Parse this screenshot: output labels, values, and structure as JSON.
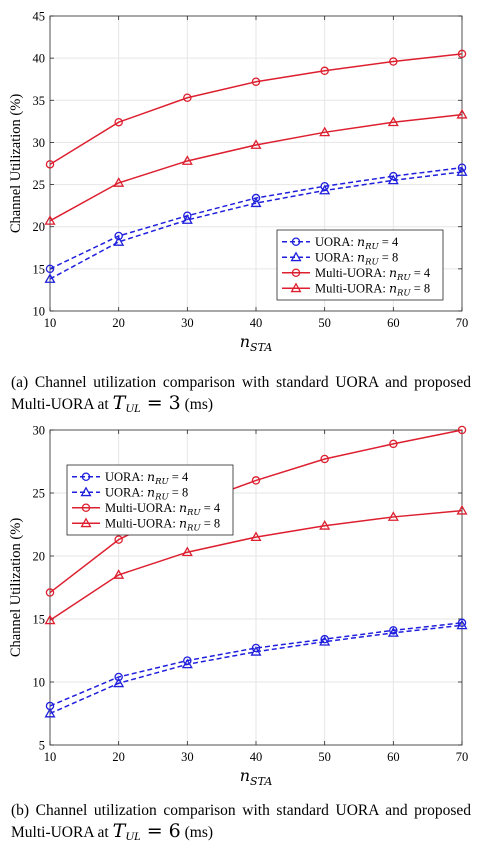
{
  "chart_data": [
    {
      "type": "line",
      "x": [
        10,
        20,
        30,
        40,
        50,
        60,
        70
      ],
      "xlabel": "n_STA",
      "ylabel": "Channel Utilization (%)",
      "xlim": [
        10,
        70
      ],
      "ylim": [
        10,
        45
      ],
      "xticks": [
        10,
        20,
        30,
        40,
        50,
        60,
        70
      ],
      "yticks": [
        10,
        15,
        20,
        25,
        30,
        35,
        40,
        45
      ],
      "grid": true,
      "legend_position": "lower-right",
      "series": [
        {
          "name": "UORA: n_RU = 4",
          "label_prefix": "UORA: ",
          "label_var": "n",
          "label_sub": "RU",
          "label_suffix": " = 4",
          "color": "#1f1fdd",
          "dash": true,
          "marker": "circle",
          "values": [
            15.0,
            18.9,
            21.3,
            23.4,
            24.8,
            26.0,
            27.0
          ]
        },
        {
          "name": "UORA: n_RU = 8",
          "label_prefix": "UORA: ",
          "label_var": "n",
          "label_sub": "RU",
          "label_suffix": " = 8",
          "color": "#1f1fdd",
          "dash": true,
          "marker": "triangle",
          "values": [
            13.8,
            18.2,
            20.8,
            22.8,
            24.3,
            25.5,
            26.5
          ]
        },
        {
          "name": "Multi-UORA: n_RU = 4",
          "label_prefix": "Multi-UORA: ",
          "label_var": "n",
          "label_sub": "RU",
          "label_suffix": " = 4",
          "color": "#dd1f2f",
          "dash": false,
          "marker": "circle",
          "values": [
            27.4,
            32.4,
            35.3,
            37.2,
            38.5,
            39.6,
            40.5
          ]
        },
        {
          "name": "Multi-UORA: n_RU = 8",
          "label_prefix": "Multi-UORA: ",
          "label_var": "n",
          "label_sub": "RU",
          "label_suffix": " = 8",
          "color": "#dd1f2f",
          "dash": false,
          "marker": "triangle",
          "values": [
            20.7,
            25.2,
            27.8,
            29.7,
            31.2,
            32.4,
            33.3
          ]
        }
      ]
    },
    {
      "type": "line",
      "x": [
        10,
        20,
        30,
        40,
        50,
        60,
        70
      ],
      "xlabel": "n_STA",
      "ylabel": "Channel Utilization (%)",
      "xlim": [
        10,
        70
      ],
      "ylim": [
        5,
        30
      ],
      "xticks": [
        10,
        20,
        30,
        40,
        50,
        60,
        70
      ],
      "yticks": [
        5,
        10,
        15,
        20,
        25,
        30
      ],
      "grid": true,
      "legend_position": "upper-left",
      "series": [
        {
          "name": "UORA: n_RU = 4",
          "label_prefix": "UORA: ",
          "label_var": "n",
          "label_sub": "RU",
          "label_suffix": " = 4",
          "color": "#1f1fdd",
          "dash": true,
          "marker": "circle",
          "values": [
            8.1,
            10.4,
            11.7,
            12.7,
            13.4,
            14.1,
            14.7
          ]
        },
        {
          "name": "UORA: n_RU = 8",
          "label_prefix": "UORA: ",
          "label_var": "n",
          "label_sub": "RU",
          "label_suffix": " = 8",
          "color": "#1f1fdd",
          "dash": true,
          "marker": "triangle",
          "values": [
            7.5,
            9.9,
            11.4,
            12.4,
            13.2,
            13.9,
            14.5
          ]
        },
        {
          "name": "Multi-UORA: n_RU = 4",
          "label_prefix": "Multi-UORA: ",
          "label_var": "n",
          "label_sub": "RU",
          "label_suffix": " = 4",
          "color": "#dd1f2f",
          "dash": false,
          "marker": "circle",
          "values": [
            17.1,
            21.3,
            24.0,
            26.0,
            27.7,
            28.9,
            30.0
          ]
        },
        {
          "name": "Multi-UORA: n_RU = 8",
          "label_prefix": "Multi-UORA: ",
          "label_var": "n",
          "label_sub": "RU",
          "label_suffix": " = 8",
          "color": "#dd1f2f",
          "dash": false,
          "marker": "triangle",
          "values": [
            14.9,
            18.5,
            20.3,
            21.5,
            22.4,
            23.1,
            23.6
          ]
        }
      ]
    }
  ],
  "captions": {
    "a": {
      "prefix": "(a) Channel utilization comparison with standard UORA and proposed Multi-UORA at ",
      "var": "T",
      "sub": "UL",
      "eq": " = 3",
      "unit": " (ms)"
    },
    "b": {
      "prefix": "(b) Channel utilization comparison with standard UORA and proposed Multi-UORA at ",
      "var": "T",
      "sub": "UL",
      "eq": " = 6",
      "unit": " (ms)"
    }
  }
}
